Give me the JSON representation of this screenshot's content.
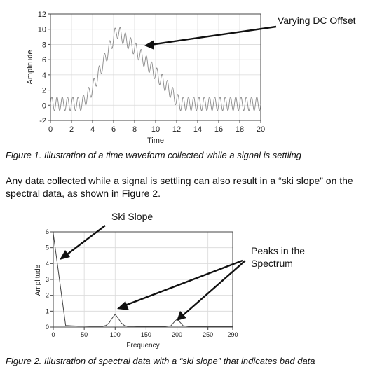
{
  "figure1": {
    "caption": "Figure 1. Illustration of a time waveform collected while a signal is settling",
    "annotation": "Varying DC Offset",
    "chart_data": {
      "type": "line",
      "xlabel": "Time",
      "ylabel": "Amplitude",
      "xlim": [
        0,
        20
      ],
      "ylim": [
        -2,
        12
      ],
      "xticks": [
        "0",
        "2",
        "4",
        "6",
        "8",
        "10",
        "12",
        "14",
        "16",
        "18",
        "20"
      ],
      "yticks": [
        "-2",
        "0",
        "2",
        "4",
        "6",
        "8",
        "10",
        "12"
      ],
      "grid": true,
      "series": [
        {
          "description_points": {
            "x": [
              0,
              3,
              4,
              5,
              6.3,
              7,
              8,
              9,
              10,
              11,
              12.3,
              20
            ],
            "offset": [
              0.2,
              0.2,
              2.2,
              5.5,
              9.8,
              8.8,
              7.5,
              5.8,
              4.2,
              2.6,
              0.2,
              0.2
            ]
          },
          "oscillation_amplitude": 0.9,
          "oscillation_period": 0.5
        }
      ]
    }
  },
  "paragraph": "Any data collected while a signal is settling can also result in a “ski slope” on the spectral data, as shown in Figure 2.",
  "figure2": {
    "caption": "Figure 2. Illustration of spectral data with a “ski slope” that indicates bad data",
    "annotation_ski": "Ski Slope",
    "annotation_peaks_line1": "Peaks in the",
    "annotation_peaks_line2": "Spectrum",
    "chart_data": {
      "type": "line",
      "xlabel": "Frequency",
      "ylabel": "Amplitude",
      "xlim": [
        0,
        290
      ],
      "ylim": [
        0,
        6
      ],
      "xticks": [
        "0",
        "50",
        "100",
        "150",
        "200",
        "250",
        "290"
      ],
      "xtick_values": [
        0,
        50,
        100,
        150,
        200,
        250,
        290
      ],
      "yticks": [
        "0",
        "1",
        "2",
        "3",
        "4",
        "5",
        "6"
      ],
      "grid": true,
      "series": [
        {
          "x": [
            0,
            10,
            20,
            30,
            40,
            50,
            60,
            70,
            80,
            85,
            90,
            95,
            100,
            105,
            110,
            115,
            120,
            130,
            140,
            150,
            160,
            170,
            180,
            190,
            195,
            200,
            205,
            210,
            220,
            230,
            240,
            250,
            260,
            270,
            280,
            290
          ],
          "y": [
            5.9,
            3.0,
            0.1,
            0.08,
            0.06,
            0.06,
            0.05,
            0.05,
            0.05,
            0.1,
            0.25,
            0.55,
            0.8,
            0.55,
            0.25,
            0.1,
            0.05,
            0.05,
            0.04,
            0.04,
            0.04,
            0.04,
            0.04,
            0.08,
            0.3,
            0.5,
            0.3,
            0.08,
            0.04,
            0.04,
            0.05,
            0.04,
            0.04,
            0.04,
            0.04,
            0.04
          ]
        }
      ]
    }
  }
}
